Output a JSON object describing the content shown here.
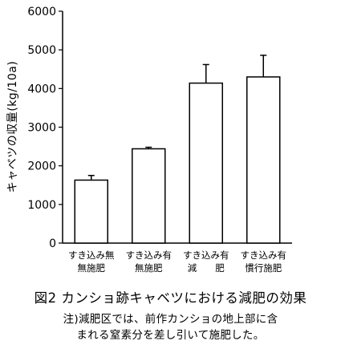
{
  "chart_data": {
    "type": "bar",
    "ylabel": "キャベツの収量(kg/10a)",
    "ylim": [
      0,
      6000
    ],
    "y_ticks": [
      "0",
      "1000",
      "2000",
      "3000",
      "4000",
      "5000",
      "6000"
    ],
    "y_tick_values": [
      0,
      1000,
      2000,
      3000,
      4000,
      5000,
      6000
    ],
    "categories": [
      [
        "すき込み無",
        "無施肥"
      ],
      [
        "すき込み有",
        "無施肥"
      ],
      [
        "すき込み有",
        "減　　肥"
      ],
      [
        "すき込み有",
        "慣行施肥"
      ]
    ],
    "values": [
      1630,
      2440,
      4140,
      4300
    ],
    "error_bars": [
      120,
      40,
      480,
      560
    ],
    "grid": false,
    "legend": "none"
  },
  "caption": {
    "title": "図2 カンショ跡キャベツにおける減肥の効果",
    "note_line1": "注)減肥区では、前作カンショの地上部に含",
    "note_line2": "まれる窒素分を差し引いて施肥した。"
  },
  "colors": {
    "bar_fill": "#ffffff",
    "stroke": "#000000"
  }
}
